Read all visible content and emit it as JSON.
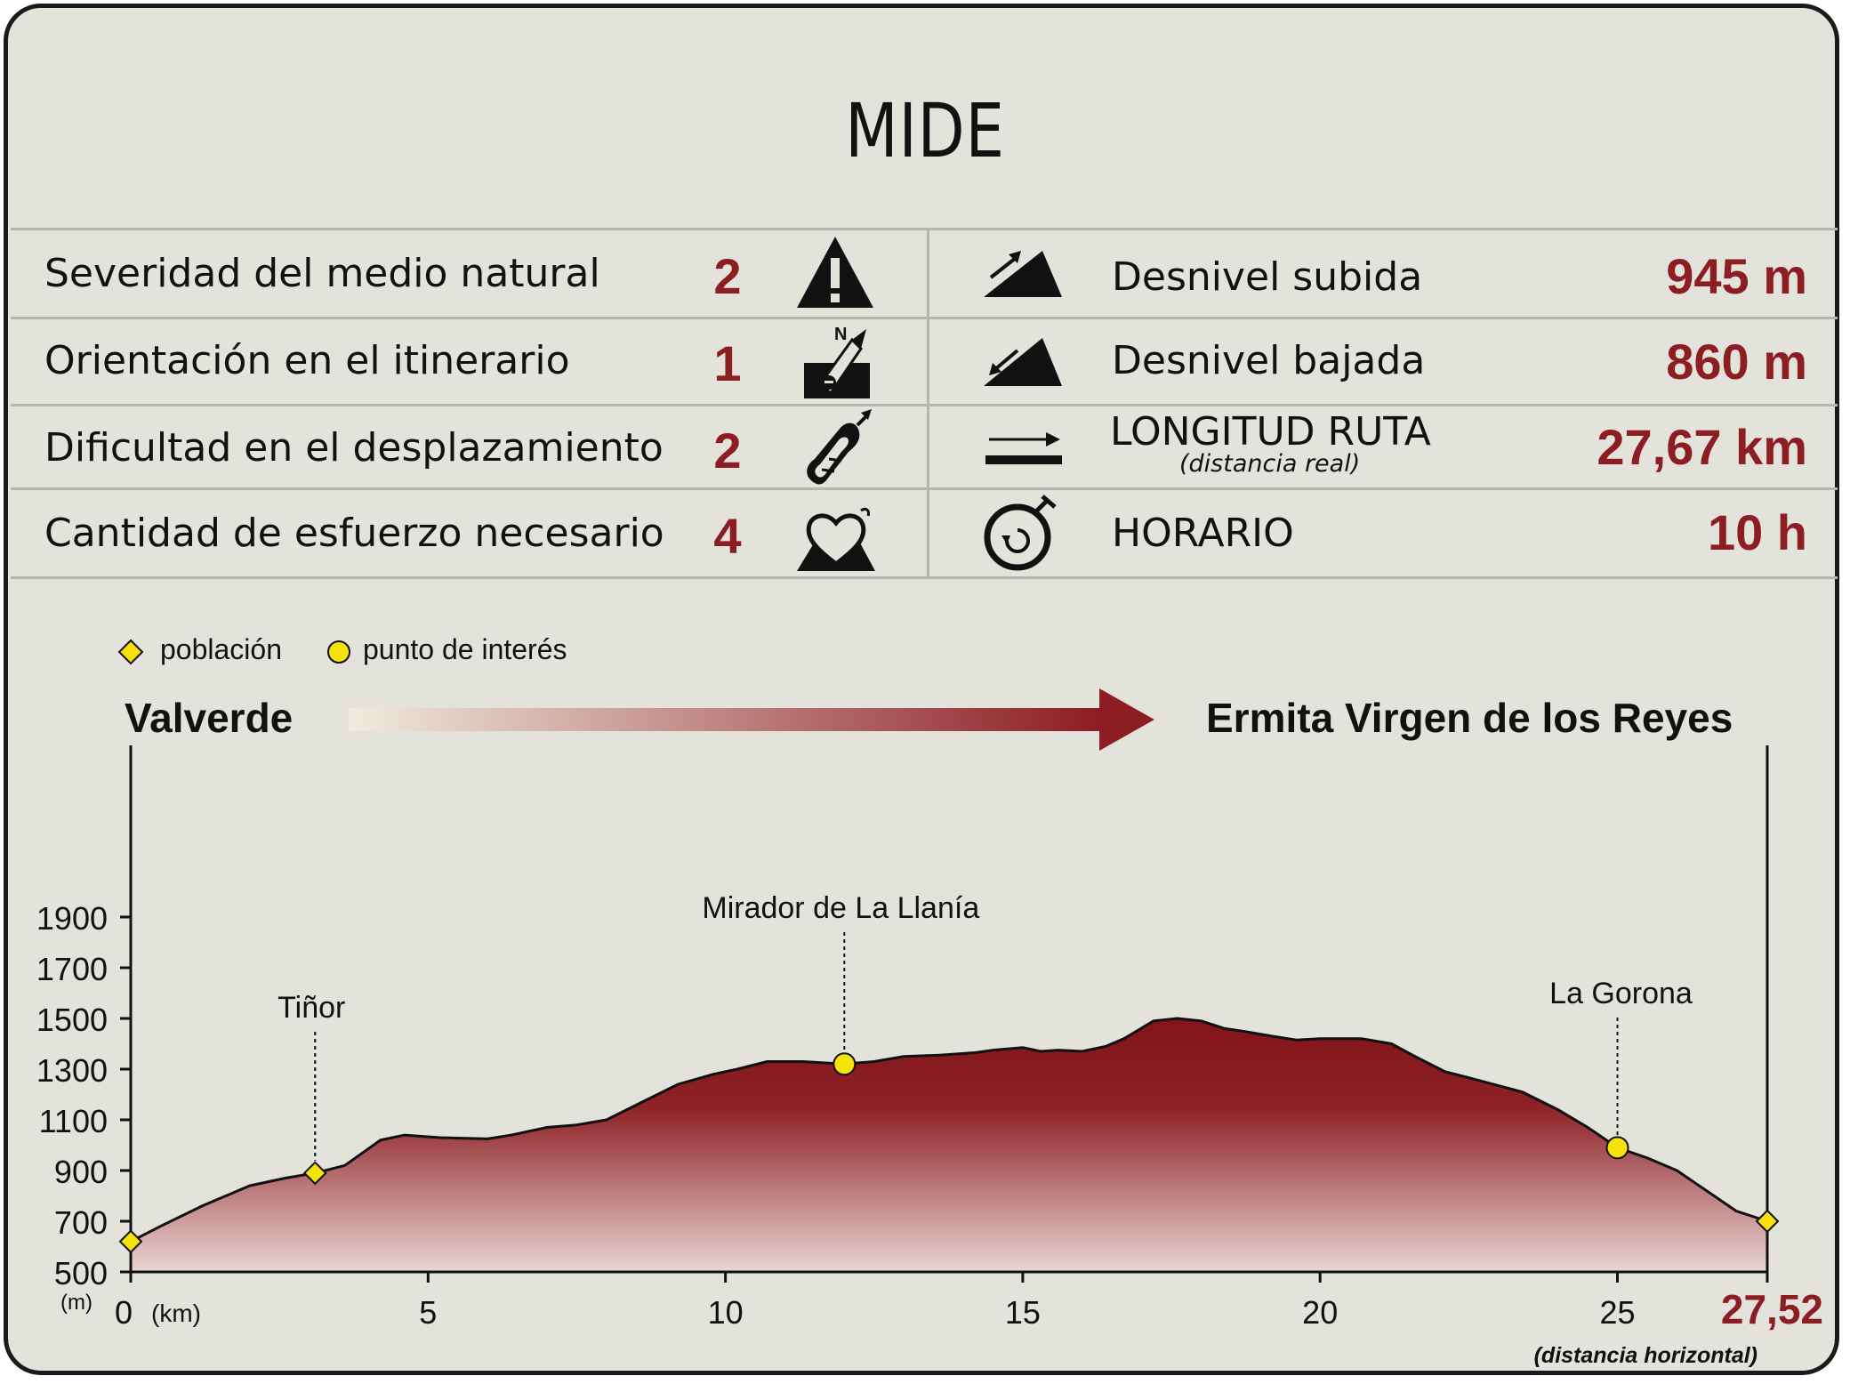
{
  "title": "MIDE",
  "mide": [
    {
      "label": "Severidad del medio natural",
      "score": "2",
      "icon": "warning-triangle-icon"
    },
    {
      "label": "Orientación en el itinerario",
      "score": "1",
      "icon": "compass-orientation-icon"
    },
    {
      "label": "Dificultad en el desplazamiento",
      "score": "2",
      "icon": "footprint-icon"
    },
    {
      "label": "Cantidad de esfuerzo necesario",
      "score": "4",
      "icon": "heart-effort-icon"
    }
  ],
  "stats": [
    {
      "label": "Desnivel subida",
      "value": "945 m",
      "icon": "ascent-slope-icon"
    },
    {
      "label": "Desnivel bajada",
      "value": "860 m",
      "icon": "descent-slope-icon"
    },
    {
      "label": "LONGITUD RUTA",
      "sublabel": "(distancia real)",
      "value": "27,67 km",
      "icon": "distance-arrow-icon"
    },
    {
      "label": "HORARIO",
      "value": "10 h",
      "icon": "stopwatch-icon"
    }
  ],
  "legend": {
    "town": "población",
    "poi": "punto de interés"
  },
  "route": {
    "start": "Valverde",
    "end": "Ermita Virgen de los Reyes"
  },
  "colors": {
    "accent": "#8c1d23",
    "marker": "#f4e20a",
    "background": "#e3e3db"
  },
  "chart_data": {
    "type": "area",
    "xlabel": "(km)",
    "ylabel": "(m)",
    "xlim": [
      0,
      27.52
    ],
    "ylim": [
      500,
      1900
    ],
    "x_ticks": [
      0,
      5,
      10,
      15,
      20,
      25
    ],
    "x_tick_labels": [
      "0",
      "5",
      "10",
      "15",
      "20",
      "25"
    ],
    "y_ticks": [
      500,
      700,
      900,
      1100,
      1300,
      1500,
      1700,
      1900
    ],
    "y_tick_labels": [
      "500",
      "700",
      "900",
      "1100",
      "1300",
      "1500",
      "1700",
      "1900"
    ],
    "end_label": "27,52",
    "end_note": "(distancia horizontal)",
    "series": [
      {
        "x": [
          0,
          0.5,
          1.2,
          2.0,
          2.6,
          3.1,
          3.6,
          4.2,
          4.6,
          5.2,
          6.0,
          6.4,
          7.0,
          7.5,
          8.0,
          8.6,
          9.2,
          9.8,
          10.2,
          10.7,
          11.3,
          12.0,
          12.5,
          13.0,
          13.6,
          14.2,
          14.5,
          15.0,
          15.3,
          15.6,
          16.0,
          16.4,
          16.7,
          17.2,
          17.6,
          18.0,
          18.4,
          18.7,
          19.2,
          19.6,
          20.0,
          20.7,
          21.2,
          21.6,
          22.1,
          22.6,
          23.4,
          24.0,
          24.5,
          25.0,
          25.5,
          26.0,
          26.5,
          27.0,
          27.52
        ],
        "y": [
          620,
          680,
          760,
          840,
          870,
          890,
          920,
          1020,
          1040,
          1030,
          1025,
          1040,
          1070,
          1080,
          1100,
          1170,
          1240,
          1280,
          1300,
          1330,
          1330,
          1320,
          1330,
          1350,
          1355,
          1365,
          1375,
          1385,
          1370,
          1375,
          1370,
          1390,
          1420,
          1490,
          1500,
          1490,
          1460,
          1450,
          1430,
          1415,
          1420,
          1420,
          1400,
          1350,
          1290,
          1260,
          1210,
          1140,
          1070,
          990,
          950,
          900,
          820,
          740,
          700
        ]
      }
    ],
    "markers": [
      {
        "type": "population",
        "x": 0,
        "y": 620,
        "label": ""
      },
      {
        "type": "population",
        "x": 3.1,
        "y": 890,
        "label": "Tiñor"
      },
      {
        "type": "interest",
        "x": 12.0,
        "y": 1320,
        "label": "Mirador de La Llanía"
      },
      {
        "type": "interest",
        "x": 25.0,
        "y": 990,
        "label": "La Gorona"
      },
      {
        "type": "population",
        "x": 27.52,
        "y": 700,
        "label": ""
      }
    ]
  }
}
